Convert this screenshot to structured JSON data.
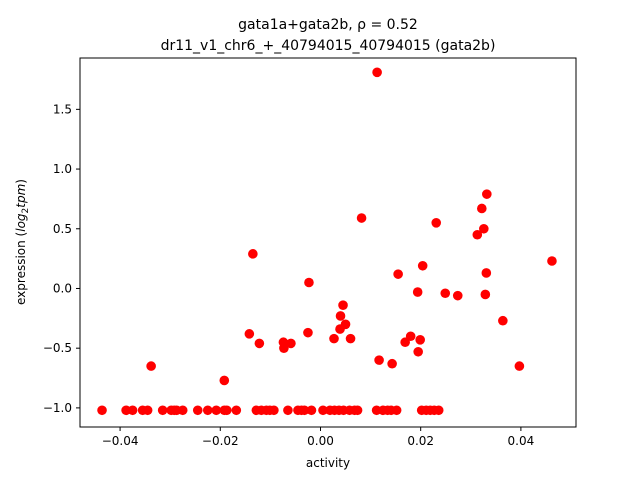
{
  "chart_data": {
    "type": "scatter",
    "title_line1": "gata1a+gata2b, ρ = 0.52",
    "title_line2": "dr11_v1_chr6_+_40794015_40794015 (gata2b)",
    "xlabel": "activity",
    "ylabel_prefix": "expression (",
    "ylabel_log": "log",
    "ylabel_sub": "2",
    "ylabel_tpm": "tpm",
    "ylabel_suffix": ")",
    "xlim": [
      -0.048,
      0.051
    ],
    "ylim": [
      -1.16,
      1.93
    ],
    "xticks": [
      {
        "value": -0.04,
        "label": "−0.04"
      },
      {
        "value": -0.02,
        "label": "−0.02"
      },
      {
        "value": 0.0,
        "label": "0.00"
      },
      {
        "value": 0.02,
        "label": "0.02"
      },
      {
        "value": 0.04,
        "label": "0.04"
      }
    ],
    "yticks": [
      {
        "value": -1.0,
        "label": "−1.0"
      },
      {
        "value": -0.5,
        "label": "−0.5"
      },
      {
        "value": 0.0,
        "label": "0.0"
      },
      {
        "value": 0.5,
        "label": "0.5"
      },
      {
        "value": 1.0,
        "label": "1.0"
      },
      {
        "value": 1.5,
        "label": "1.5"
      }
    ],
    "marker_color": "#ff0000",
    "grid": false,
    "points": [
      {
        "x": -0.0436,
        "y": -1.02
      },
      {
        "x": -0.0388,
        "y": -1.02
      },
      {
        "x": -0.0375,
        "y": -1.02
      },
      {
        "x": -0.0355,
        "y": -1.02
      },
      {
        "x": -0.0345,
        "y": -1.02
      },
      {
        "x": -0.0315,
        "y": -1.02
      },
      {
        "x": -0.0298,
        "y": -1.02
      },
      {
        "x": -0.0292,
        "y": -1.02
      },
      {
        "x": -0.0287,
        "y": -1.02
      },
      {
        "x": -0.0275,
        "y": -1.02
      },
      {
        "x": -0.0245,
        "y": -1.02
      },
      {
        "x": -0.0225,
        "y": -1.02
      },
      {
        "x": -0.0208,
        "y": -1.02
      },
      {
        "x": -0.0192,
        "y": -1.02
      },
      {
        "x": -0.0187,
        "y": -1.02
      },
      {
        "x": -0.0168,
        "y": -1.02
      },
      {
        "x": -0.0128,
        "y": -1.02
      },
      {
        "x": -0.0118,
        "y": -1.02
      },
      {
        "x": -0.0108,
        "y": -1.02
      },
      {
        "x": -0.0101,
        "y": -1.02
      },
      {
        "x": -0.0093,
        "y": -1.02
      },
      {
        "x": -0.0065,
        "y": -1.02
      },
      {
        "x": -0.0045,
        "y": -1.02
      },
      {
        "x": -0.0038,
        "y": -1.02
      },
      {
        "x": -0.0032,
        "y": -1.02
      },
      {
        "x": -0.0018,
        "y": -1.02
      },
      {
        "x": 0.0005,
        "y": -1.02
      },
      {
        "x": 0.0019,
        "y": -1.02
      },
      {
        "x": 0.0028,
        "y": -1.02
      },
      {
        "x": 0.0037,
        "y": -1.02
      },
      {
        "x": 0.0046,
        "y": -1.02
      },
      {
        "x": 0.0058,
        "y": -1.02
      },
      {
        "x": 0.0068,
        "y": -1.02
      },
      {
        "x": 0.0074,
        "y": -1.02
      },
      {
        "x": 0.0112,
        "y": -1.02
      },
      {
        "x": 0.0125,
        "y": -1.02
      },
      {
        "x": 0.0134,
        "y": -1.02
      },
      {
        "x": 0.0141,
        "y": -1.02
      },
      {
        "x": 0.0152,
        "y": -1.02
      },
      {
        "x": 0.0202,
        "y": -1.02
      },
      {
        "x": 0.0211,
        "y": -1.02
      },
      {
        "x": 0.0219,
        "y": -1.02
      },
      {
        "x": 0.0227,
        "y": -1.02
      },
      {
        "x": 0.0236,
        "y": -1.02
      },
      {
        "x": -0.0338,
        "y": -0.65
      },
      {
        "x": -0.0192,
        "y": -0.77
      },
      {
        "x": -0.0142,
        "y": -0.38
      },
      {
        "x": -0.0135,
        "y": 0.29
      },
      {
        "x": -0.0122,
        "y": -0.46
      },
      {
        "x": -0.0074,
        "y": -0.45
      },
      {
        "x": -0.0073,
        "y": -0.5
      },
      {
        "x": -0.0059,
        "y": -0.46
      },
      {
        "x": -0.0025,
        "y": -0.37
      },
      {
        "x": -0.0023,
        "y": 0.05
      },
      {
        "x": 0.0027,
        "y": -0.42
      },
      {
        "x": 0.0039,
        "y": -0.34
      },
      {
        "x": 0.004,
        "y": -0.23
      },
      {
        "x": 0.0045,
        "y": -0.14
      },
      {
        "x": 0.005,
        "y": -0.3
      },
      {
        "x": 0.006,
        "y": -0.42
      },
      {
        "x": 0.0082,
        "y": 0.59
      },
      {
        "x": 0.0113,
        "y": 1.81
      },
      {
        "x": 0.0117,
        "y": -0.6
      },
      {
        "x": 0.0143,
        "y": -0.63
      },
      {
        "x": 0.0155,
        "y": 0.12
      },
      {
        "x": 0.0169,
        "y": -0.45
      },
      {
        "x": 0.018,
        "y": -0.4
      },
      {
        "x": 0.0194,
        "y": -0.03
      },
      {
        "x": 0.0195,
        "y": -0.53
      },
      {
        "x": 0.0199,
        "y": -0.43
      },
      {
        "x": 0.0204,
        "y": 0.19
      },
      {
        "x": 0.0231,
        "y": 0.55
      },
      {
        "x": 0.0249,
        "y": -0.04
      },
      {
        "x": 0.0274,
        "y": -0.06
      },
      {
        "x": 0.0313,
        "y": 0.45
      },
      {
        "x": 0.0322,
        "y": 0.67
      },
      {
        "x": 0.0326,
        "y": 0.5
      },
      {
        "x": 0.0329,
        "y": -0.05
      },
      {
        "x": 0.0331,
        "y": 0.13
      },
      {
        "x": 0.0332,
        "y": 0.79
      },
      {
        "x": 0.0364,
        "y": -0.27
      },
      {
        "x": 0.0397,
        "y": -0.65
      },
      {
        "x": 0.0462,
        "y": 0.23
      }
    ]
  }
}
